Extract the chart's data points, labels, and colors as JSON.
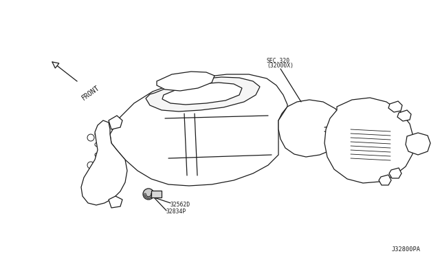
{
  "background_color": "#ffffff",
  "line_color": "#1a1a1a",
  "line_width": 0.9,
  "fig_width": 6.4,
  "fig_height": 3.72,
  "dpi": 100,
  "label_front_text": "FRONT",
  "label_sec": "SEC.320",
  "label_sec2": "(32000X)",
  "label_part1": "32562D",
  "label_part2": "32834P",
  "label_diagram": "J32800PA",
  "text_color": "#1a1a1a",
  "font_size_labels": 5.5,
  "font_size_diagram_id": 6.0
}
